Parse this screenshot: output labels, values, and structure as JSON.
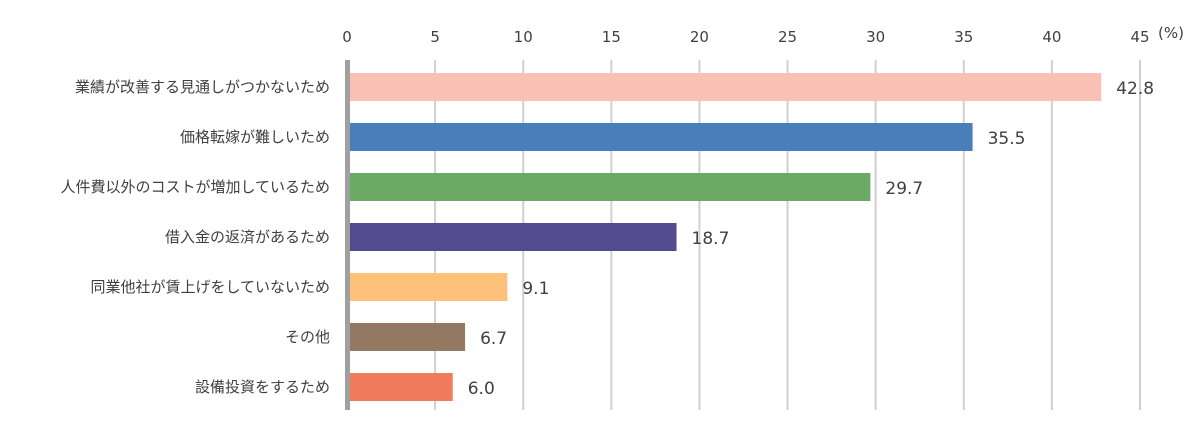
{
  "chart_data": {
    "type": "bar",
    "orientation": "horizontal",
    "title": "",
    "xlabel": "",
    "ylabel": "",
    "unit_label": "(%)",
    "xlim": [
      0,
      45
    ],
    "x_ticks": [
      0,
      5,
      10,
      15,
      20,
      25,
      30,
      35,
      40,
      45
    ],
    "x_tick_labels": [
      "0",
      "5",
      "10",
      "15",
      "20",
      "25",
      "30",
      "35",
      "40",
      "45"
    ],
    "grid": "vertical",
    "axis_position": "top",
    "categories": [
      "業績が改善する見通しがつかないため",
      "価格転嫁が難しいため",
      "人件費以外のコストが増加しているため",
      "借入金の返済があるため",
      "同業他社が賃上げをしていないため",
      "その他",
      "設備投資をするため"
    ],
    "values": [
      42.8,
      35.5,
      29.7,
      18.7,
      9.1,
      6.7,
      6.0
    ],
    "value_labels": [
      "42.8",
      "35.5",
      "29.7",
      "18.7",
      "9.1",
      "6.7",
      "6.0"
    ],
    "colors": [
      "#f8c1b4",
      "#4a7ebb",
      "#6aaa64",
      "#534b8f",
      "#fdc17a",
      "#937962",
      "#f07b5c"
    ],
    "gridline_color": "#d0d0d0",
    "axis_color": "#a0a0a0"
  }
}
